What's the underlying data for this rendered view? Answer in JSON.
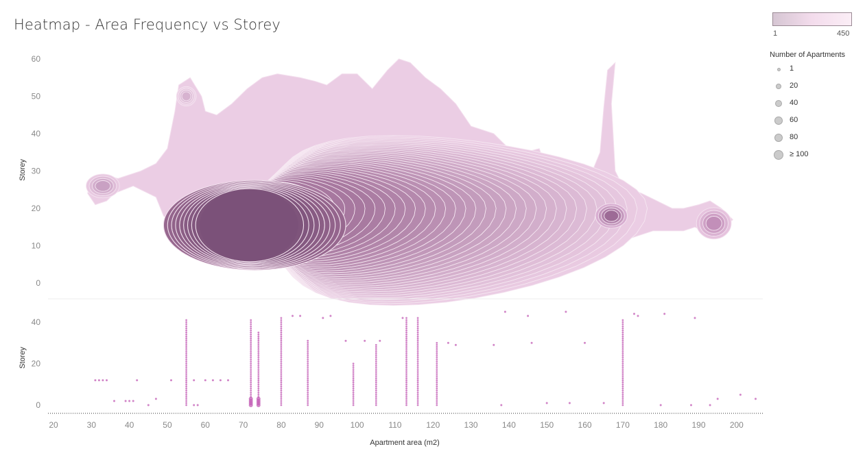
{
  "title": "Heatmap - Area Frequency vs Storey",
  "colors": {
    "contour_dark": "#7b5179",
    "contour_mid": "#a7789f",
    "contour_light": "#ebcde4",
    "point": "#c25bb4",
    "scale_low": "#d6c6d3",
    "scale_high": "#fbeef6"
  },
  "legend": {
    "color_min": "1",
    "color_max": "450",
    "size_title": "Number of Apartments",
    "sizes": [
      {
        "label": "1",
        "value": 1
      },
      {
        "label": "20",
        "value": 20
      },
      {
        "label": "40",
        "value": 40
      },
      {
        "label": "60",
        "value": 60
      },
      {
        "label": "80",
        "value": 80
      },
      {
        "label": "≥ 100",
        "value": 100
      }
    ]
  },
  "chart_data": [
    {
      "type": "heatmap",
      "subtype": "density contour",
      "xlabel": "",
      "ylabel": "Storey",
      "xlim": [
        18,
        208
      ],
      "ylim": [
        -2,
        62
      ],
      "yticks": [
        0,
        10,
        20,
        30,
        40,
        50,
        60
      ],
      "density_peaks": [
        {
          "x": 73,
          "y": 18,
          "level": "high"
        },
        {
          "x": 113,
          "y": 20,
          "level": "medium"
        },
        {
          "x": 167,
          "y": 18,
          "level": "medium"
        },
        {
          "x": 194,
          "y": 16,
          "level": "low"
        },
        {
          "x": 33,
          "y": 26,
          "level": "low"
        },
        {
          "x": 55,
          "y": 50,
          "level": "low"
        }
      ]
    },
    {
      "type": "scatter",
      "xlabel": "Apartment area (m2)",
      "ylabel": "Storey",
      "xlim": [
        18,
        208
      ],
      "ylim": [
        -2,
        47
      ],
      "xticks": [
        20,
        30,
        40,
        50,
        60,
        70,
        80,
        90,
        100,
        110,
        120,
        130,
        140,
        150,
        160,
        170,
        180,
        190,
        200
      ],
      "yticks": [
        0,
        20,
        40
      ],
      "columns": [
        {
          "x": 55,
          "max": 41
        },
        {
          "x": 72,
          "max": 41
        },
        {
          "x": 74,
          "max": 35
        },
        {
          "x": 80,
          "max": 42
        },
        {
          "x": 87,
          "max": 31
        },
        {
          "x": 99,
          "max": 20
        },
        {
          "x": 105,
          "max": 29
        },
        {
          "x": 113,
          "max": 42
        },
        {
          "x": 116,
          "max": 42
        },
        {
          "x": 121,
          "max": 30
        },
        {
          "x": 170,
          "max": 41
        }
      ],
      "points": [
        [
          31,
          12
        ],
        [
          32,
          12
        ],
        [
          33,
          12
        ],
        [
          34,
          12
        ],
        [
          42,
          12
        ],
        [
          51,
          12
        ],
        [
          57,
          12
        ],
        [
          60,
          12
        ],
        [
          62,
          12
        ],
        [
          64,
          12
        ],
        [
          66,
          12
        ],
        [
          36,
          2
        ],
        [
          39,
          2
        ],
        [
          40,
          2
        ],
        [
          41,
          2
        ],
        [
          47,
          3
        ],
        [
          45,
          0
        ],
        [
          57,
          0
        ],
        [
          58,
          0
        ],
        [
          83,
          43
        ],
        [
          85,
          43
        ],
        [
          91,
          42
        ],
        [
          93,
          43
        ],
        [
          112,
          42
        ],
        [
          139,
          45
        ],
        [
          145,
          43
        ],
        [
          155,
          45
        ],
        [
          173,
          44
        ],
        [
          174,
          43
        ],
        [
          181,
          44
        ],
        [
          189,
          42
        ],
        [
          97,
          31
        ],
        [
          102,
          31
        ],
        [
          106,
          31
        ],
        [
          124,
          30
        ],
        [
          126,
          29
        ],
        [
          146,
          30
        ],
        [
          160,
          30
        ],
        [
          136,
          29
        ],
        [
          138,
          0
        ],
        [
          150,
          1
        ],
        [
          195,
          3
        ],
        [
          201,
          5
        ],
        [
          205,
          3
        ],
        [
          188,
          0
        ],
        [
          193,
          0
        ],
        [
          180,
          0
        ],
        [
          165,
          1
        ],
        [
          156,
          1
        ]
      ]
    }
  ]
}
